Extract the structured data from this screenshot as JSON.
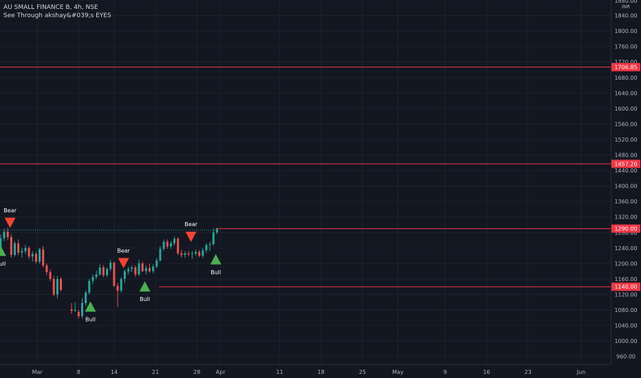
{
  "legend": {
    "symbol_line": "AU SMALL FINANCE B, 4h, NSE",
    "indicator_line": "See Through akshay&#039;s EYES"
  },
  "chart_data": {
    "type": "candlestick",
    "symbol": "AU SMALL FINANCE B",
    "interval": "4h",
    "exchange": "NSE",
    "currency_label": "INR",
    "ylim": [
      940,
      1880
    ],
    "y_ticks": [
      960,
      1000,
      1040,
      1080,
      1120,
      1160,
      1200,
      1240,
      1280,
      1320,
      1360,
      1400,
      1440,
      1480,
      1520,
      1560,
      1600,
      1640,
      1680,
      1720,
      1760,
      1800,
      1840,
      1880
    ],
    "top_tick_label": "1880.00",
    "x_ticks": [
      {
        "label": "Mar",
        "day": 0
      },
      {
        "label": "8",
        "day": 7
      },
      {
        "label": "14",
        "day": 13
      },
      {
        "label": "21",
        "day": 20
      },
      {
        "label": "28",
        "day": 27
      },
      {
        "label": "Apr",
        "day": 31
      },
      {
        "label": "11",
        "day": 41
      },
      {
        "label": "18",
        "day": 48
      },
      {
        "label": "25",
        "day": 55
      },
      {
        "label": "May",
        "day": 61
      },
      {
        "label": "9",
        "day": 69
      },
      {
        "label": "16",
        "day": 76
      },
      {
        "label": "23",
        "day": 83
      },
      {
        "label": "Jun",
        "day": 92
      }
    ],
    "x_day_range": [
      -6.3,
      97
    ],
    "candles": [
      {
        "day": -6.2,
        "o": 1240,
        "h": 1275,
        "l": 1235,
        "c": 1265
      },
      {
        "day": -5.6,
        "o": 1265,
        "h": 1290,
        "l": 1258,
        "c": 1282
      },
      {
        "day": -5.0,
        "o": 1282,
        "h": 1292,
        "l": 1260,
        "c": 1268
      },
      {
        "day": -4.4,
        "o": 1268,
        "h": 1275,
        "l": 1215,
        "c": 1222
      },
      {
        "day": -3.8,
        "o": 1222,
        "h": 1258,
        "l": 1218,
        "c": 1252
      },
      {
        "day": -3.2,
        "o": 1252,
        "h": 1262,
        "l": 1222,
        "c": 1228
      },
      {
        "day": -2.6,
        "o": 1228,
        "h": 1240,
        "l": 1215,
        "c": 1232
      },
      {
        "day": -2.0,
        "o": 1232,
        "h": 1248,
        "l": 1225,
        "c": 1240
      },
      {
        "day": -1.4,
        "o": 1240,
        "h": 1245,
        "l": 1212,
        "c": 1218
      },
      {
        "day": -0.8,
        "o": 1218,
        "h": 1232,
        "l": 1205,
        "c": 1225
      },
      {
        "day": -0.2,
        "o": 1225,
        "h": 1230,
        "l": 1200,
        "c": 1205
      },
      {
        "day": 0.4,
        "o": 1205,
        "h": 1240,
        "l": 1200,
        "c": 1236
      },
      {
        "day": 1.0,
        "o": 1236,
        "h": 1245,
        "l": 1190,
        "c": 1195
      },
      {
        "day": 1.6,
        "o": 1195,
        "h": 1200,
        "l": 1170,
        "c": 1178
      },
      {
        "day": 2.2,
        "o": 1178,
        "h": 1185,
        "l": 1155,
        "c": 1160
      },
      {
        "day": 2.8,
        "o": 1160,
        "h": 1168,
        "l": 1115,
        "c": 1120
      },
      {
        "day": 3.4,
        "o": 1120,
        "h": 1168,
        "l": 1110,
        "c": 1160
      },
      {
        "day": 4.0,
        "o": 1160,
        "h": 1165,
        "l": 1128,
        "c": 1132
      },
      {
        "day": 5.8,
        "o": 1082,
        "h": 1098,
        "l": 1070,
        "c": 1078
      },
      {
        "day": 6.4,
        "o": 1078,
        "h": 1100,
        "l": 1075,
        "c": 1080
      },
      {
        "day": 7.0,
        "o": 1075,
        "h": 1080,
        "l": 1058,
        "c": 1064
      },
      {
        "day": 7.6,
        "o": 1064,
        "h": 1110,
        "l": 1058,
        "c": 1098
      },
      {
        "day": 8.2,
        "o": 1098,
        "h": 1130,
        "l": 1090,
        "c": 1125
      },
      {
        "day": 8.8,
        "o": 1125,
        "h": 1160,
        "l": 1120,
        "c": 1155
      },
      {
        "day": 9.4,
        "o": 1155,
        "h": 1172,
        "l": 1146,
        "c": 1165
      },
      {
        "day": 10.0,
        "o": 1165,
        "h": 1182,
        "l": 1160,
        "c": 1172
      },
      {
        "day": 10.6,
        "o": 1172,
        "h": 1198,
        "l": 1168,
        "c": 1190
      },
      {
        "day": 11.2,
        "o": 1190,
        "h": 1196,
        "l": 1165,
        "c": 1170
      },
      {
        "day": 11.8,
        "o": 1170,
        "h": 1190,
        "l": 1165,
        "c": 1186
      },
      {
        "day": 12.4,
        "o": 1186,
        "h": 1210,
        "l": 1180,
        "c": 1202
      },
      {
        "day": 13.0,
        "o": 1202,
        "h": 1205,
        "l": 1140,
        "c": 1142
      },
      {
        "day": 13.6,
        "o": 1142,
        "h": 1150,
        "l": 1088,
        "c": 1130
      },
      {
        "day": 14.2,
        "o": 1130,
        "h": 1165,
        "l": 1125,
        "c": 1160
      },
      {
        "day": 14.8,
        "o": 1160,
        "h": 1185,
        "l": 1150,
        "c": 1180
      },
      {
        "day": 15.4,
        "o": 1180,
        "h": 1192,
        "l": 1172,
        "c": 1186
      },
      {
        "day": 16.0,
        "o": 1186,
        "h": 1196,
        "l": 1178,
        "c": 1190
      },
      {
        "day": 16.6,
        "o": 1190,
        "h": 1195,
        "l": 1166,
        "c": 1172
      },
      {
        "day": 17.2,
        "o": 1172,
        "h": 1210,
        "l": 1168,
        "c": 1200
      },
      {
        "day": 17.8,
        "o": 1200,
        "h": 1205,
        "l": 1178,
        "c": 1180
      },
      {
        "day": 18.4,
        "o": 1180,
        "h": 1195,
        "l": 1172,
        "c": 1188
      },
      {
        "day": 19.0,
        "o": 1188,
        "h": 1200,
        "l": 1176,
        "c": 1180
      },
      {
        "day": 19.6,
        "o": 1180,
        "h": 1198,
        "l": 1175,
        "c": 1192
      },
      {
        "day": 20.2,
        "o": 1192,
        "h": 1215,
        "l": 1188,
        "c": 1208
      },
      {
        "day": 20.8,
        "o": 1208,
        "h": 1245,
        "l": 1205,
        "c": 1238
      },
      {
        "day": 21.4,
        "o": 1238,
        "h": 1262,
        "l": 1232,
        "c": 1256
      },
      {
        "day": 22.0,
        "o": 1256,
        "h": 1262,
        "l": 1238,
        "c": 1244
      },
      {
        "day": 22.6,
        "o": 1244,
        "h": 1258,
        "l": 1238,
        "c": 1252
      },
      {
        "day": 23.2,
        "o": 1252,
        "h": 1270,
        "l": 1246,
        "c": 1264
      },
      {
        "day": 23.8,
        "o": 1264,
        "h": 1268,
        "l": 1222,
        "c": 1226
      },
      {
        "day": 24.4,
        "o": 1226,
        "h": 1235,
        "l": 1215,
        "c": 1222
      },
      {
        "day": 25.0,
        "o": 1222,
        "h": 1232,
        "l": 1214,
        "c": 1226
      },
      {
        "day": 25.6,
        "o": 1226,
        "h": 1232,
        "l": 1218,
        "c": 1224
      },
      {
        "day": 26.2,
        "o": 1224,
        "h": 1232,
        "l": 1212,
        "c": 1226
      },
      {
        "day": 26.8,
        "o": 1226,
        "h": 1236,
        "l": 1220,
        "c": 1230
      },
      {
        "day": 27.4,
        "o": 1230,
        "h": 1235,
        "l": 1216,
        "c": 1220
      },
      {
        "day": 28.0,
        "o": 1220,
        "h": 1240,
        "l": 1214,
        "c": 1234
      },
      {
        "day": 28.6,
        "o": 1234,
        "h": 1252,
        "l": 1228,
        "c": 1248
      },
      {
        "day": 29.2,
        "o": 1248,
        "h": 1256,
        "l": 1232,
        "c": 1250
      },
      {
        "day": 29.8,
        "o": 1250,
        "h": 1290,
        "l": 1246,
        "c": 1280
      },
      {
        "day": 30.4,
        "o": 1280,
        "h": 1292,
        "l": 1276,
        "c": 1289
      }
    ],
    "price_levels": [
      {
        "price": 1706.85,
        "label": "1706.85",
        "color": "#f23645",
        "from_day": -6.3
      },
      {
        "price": 1457.2,
        "label": "1457.20",
        "color": "#f23645",
        "from_day": -6.3
      },
      {
        "price": 1290.0,
        "label": "1290.00",
        "color": "#f23645",
        "from_day": 30.2
      },
      {
        "price": 1140.0,
        "label": "1140.00",
        "color": "#f23645",
        "from_day": 20.6
      }
    ],
    "dotted_line": {
      "price": 1286,
      "from_day": -6.3,
      "to_day": 30.2,
      "color": "#26a69a"
    },
    "signals": [
      {
        "type": "Bear",
        "label": "Bear",
        "day": -4.6,
        "price": 1304
      },
      {
        "type": "Bull",
        "label": "Bull",
        "day": -6.2,
        "price": 1232
      },
      {
        "type": "Bull",
        "label": "Bull",
        "day": 9.0,
        "price": 1088
      },
      {
        "type": "Bear",
        "label": "Bear",
        "day": 14.6,
        "price": 1200
      },
      {
        "type": "Bull",
        "label": "Bull",
        "day": 18.2,
        "price": 1140
      },
      {
        "type": "Bear",
        "label": "Bear",
        "day": 26.0,
        "price": 1268
      },
      {
        "type": "Bull",
        "label": "Bull",
        "day": 30.2,
        "price": 1210
      }
    ],
    "colors": {
      "background": "#131722",
      "grid": "#1e222d",
      "up": "#26a69a",
      "down": "#ef5350",
      "bull_marker": "#4caf50",
      "bear_marker": "#f44336",
      "axis_text": "#b2b5be"
    },
    "grid": true
  }
}
